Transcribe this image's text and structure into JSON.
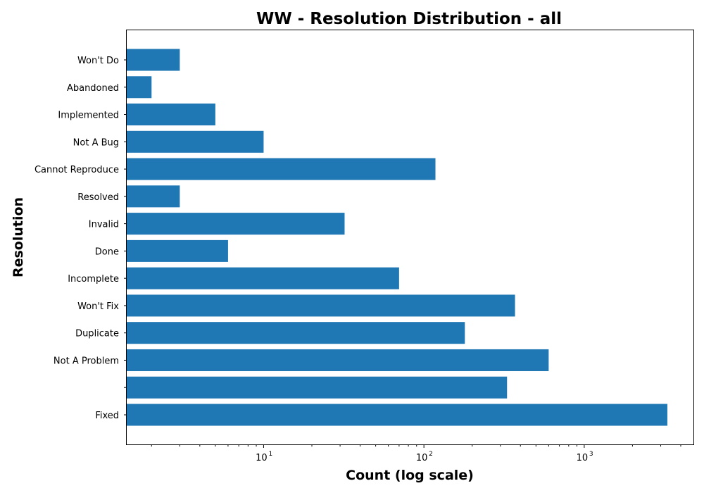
{
  "chart_data": {
    "type": "bar",
    "orientation": "horizontal",
    "title": "WW - Resolution Distribution - all",
    "xlabel": "Count (log scale)",
    "ylabel": "Resolution",
    "xscale": "log",
    "xlim": [
      1.4,
      4800
    ],
    "x_tick_labels": [
      {
        "base": "10",
        "exp": "1",
        "value": 10
      },
      {
        "base": "10",
        "exp": "2",
        "value": 100
      },
      {
        "base": "10",
        "exp": "3",
        "value": 1000
      }
    ],
    "categories": [
      "Fixed",
      "",
      "Not A Problem",
      "Duplicate",
      "Won't Fix",
      "Incomplete",
      "Done",
      "Invalid",
      "Resolved",
      "Cannot Reproduce",
      "Not A Bug",
      "Implemented",
      "Abandoned",
      "Won't Do"
    ],
    "values": [
      3300,
      330,
      600,
      180,
      370,
      70,
      6,
      32,
      3,
      118,
      10,
      5,
      2,
      3
    ],
    "color": "#1f77b4",
    "grid": false
  }
}
